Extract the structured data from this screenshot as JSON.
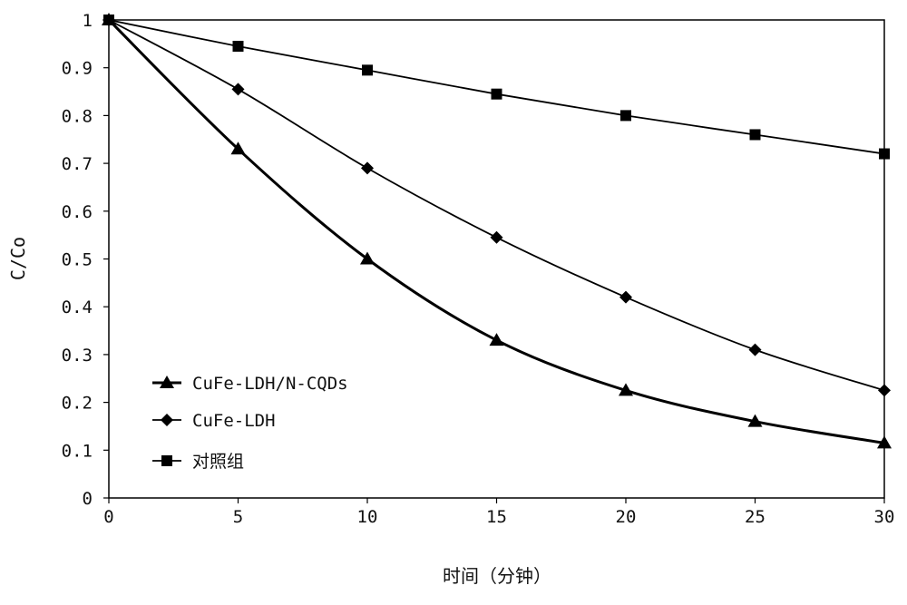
{
  "chart_data": {
    "type": "line",
    "title": "",
    "xlabel": "时间（分钟）",
    "ylabel": "C/Co",
    "xlim": [
      0,
      30
    ],
    "ylim": [
      0,
      1
    ],
    "x_ticks": [
      "0",
      "5",
      "10",
      "15",
      "20",
      "25",
      "30"
    ],
    "y_ticks": [
      "0",
      "0.1",
      "0.2",
      "0.3",
      "0.4",
      "0.5",
      "0.6",
      "0.7",
      "0.8",
      "0.9",
      "1"
    ],
    "grid": false,
    "legend_position": "bottom-left",
    "x": [
      0,
      5,
      10,
      15,
      20,
      25,
      30
    ],
    "series": [
      {
        "name": "CuFe-LDH/N-CQDs",
        "marker": "triangle",
        "color": "#000000",
        "values": [
          1.0,
          0.73,
          0.5,
          0.33,
          0.225,
          0.16,
          0.115
        ]
      },
      {
        "name": "CuFe-LDH",
        "marker": "diamond",
        "color": "#000000",
        "values": [
          1.0,
          0.855,
          0.69,
          0.545,
          0.42,
          0.31,
          0.225
        ]
      },
      {
        "name": "对照组",
        "marker": "square",
        "color": "#000000",
        "values": [
          1.0,
          0.945,
          0.895,
          0.845,
          0.8,
          0.76,
          0.72
        ]
      }
    ]
  }
}
